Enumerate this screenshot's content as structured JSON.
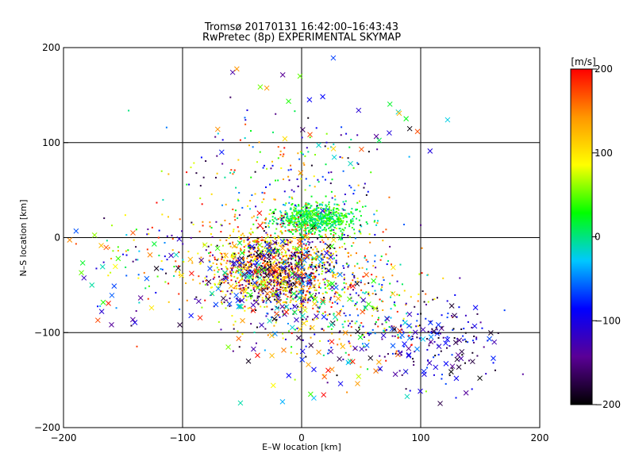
{
  "chart_data": {
    "type": "scatter",
    "title": "Tromsø 20170131 16:42:00–16:43:43",
    "subtitle": "RwPretec (8p) EXPERIMENTAL SKYMAP",
    "xlabel": "E–W location [km]",
    "ylabel": "N–S location [km]",
    "xlim": [
      -200,
      200
    ],
    "ylim": [
      -200,
      200
    ],
    "xticks": [
      -200,
      -100,
      0,
      100,
      200
    ],
    "yticks": [
      -200,
      -100,
      0,
      100,
      200
    ],
    "grid": true,
    "colorbar": {
      "label": "[m/s]",
      "min": -200,
      "max": 200,
      "ticks": [
        -200,
        -100,
        0,
        100,
        200
      ],
      "colors": [
        "#000000",
        "#5a0096",
        "#0000ff",
        "#00c8ff",
        "#00ff00",
        "#ffff00",
        "#ff9600",
        "#ff0000"
      ]
    },
    "point_clusters": [
      {
        "marker": "dot",
        "cx": 10,
        "cy": 20,
        "sx": 18,
        "sy": 8,
        "n": 700,
        "vmin": -20,
        "vmax": 60
      },
      {
        "marker": "dot",
        "cx": -25,
        "cy": -30,
        "sx": 28,
        "sy": 22,
        "n": 900,
        "vmin": 60,
        "vmax": 200
      },
      {
        "marker": "dot",
        "cx": -20,
        "cy": -40,
        "sx": 25,
        "sy": 20,
        "n": 400,
        "vmin": -200,
        "vmax": -120
      },
      {
        "marker": "dot",
        "cx": 30,
        "cy": -60,
        "sx": 40,
        "sy": 35,
        "n": 450,
        "vmin": -200,
        "vmax": 200
      },
      {
        "marker": "dot",
        "cx": 110,
        "cy": -110,
        "sx": 25,
        "sy": 25,
        "n": 120,
        "vmin": -200,
        "vmax": -60
      },
      {
        "marker": "dot",
        "cx": -10,
        "cy": 60,
        "sx": 40,
        "sy": 35,
        "n": 220,
        "vmin": -200,
        "vmax": 200
      },
      {
        "marker": "dot",
        "cx": -120,
        "cy": -20,
        "sx": 30,
        "sy": 35,
        "n": 90,
        "vmin": -200,
        "vmax": 200
      },
      {
        "marker": "cross",
        "cx": -30,
        "cy": -40,
        "sx": 30,
        "sy": 25,
        "n": 170,
        "vmin": -200,
        "vmax": 200
      },
      {
        "marker": "cross",
        "cx": 20,
        "cy": -100,
        "sx": 40,
        "sy": 40,
        "n": 90,
        "vmin": -200,
        "vmax": 200
      },
      {
        "marker": "cross",
        "cx": 115,
        "cy": -120,
        "sx": 25,
        "sy": 25,
        "n": 55,
        "vmin": -200,
        "vmax": -40
      },
      {
        "marker": "cross",
        "cx": -150,
        "cy": -40,
        "sx": 20,
        "sy": 25,
        "n": 30,
        "vmin": -200,
        "vmax": 200
      },
      {
        "marker": "cross",
        "cx": 20,
        "cy": 120,
        "sx": 60,
        "sy": 35,
        "n": 35,
        "vmin": -200,
        "vmax": 200
      }
    ]
  }
}
